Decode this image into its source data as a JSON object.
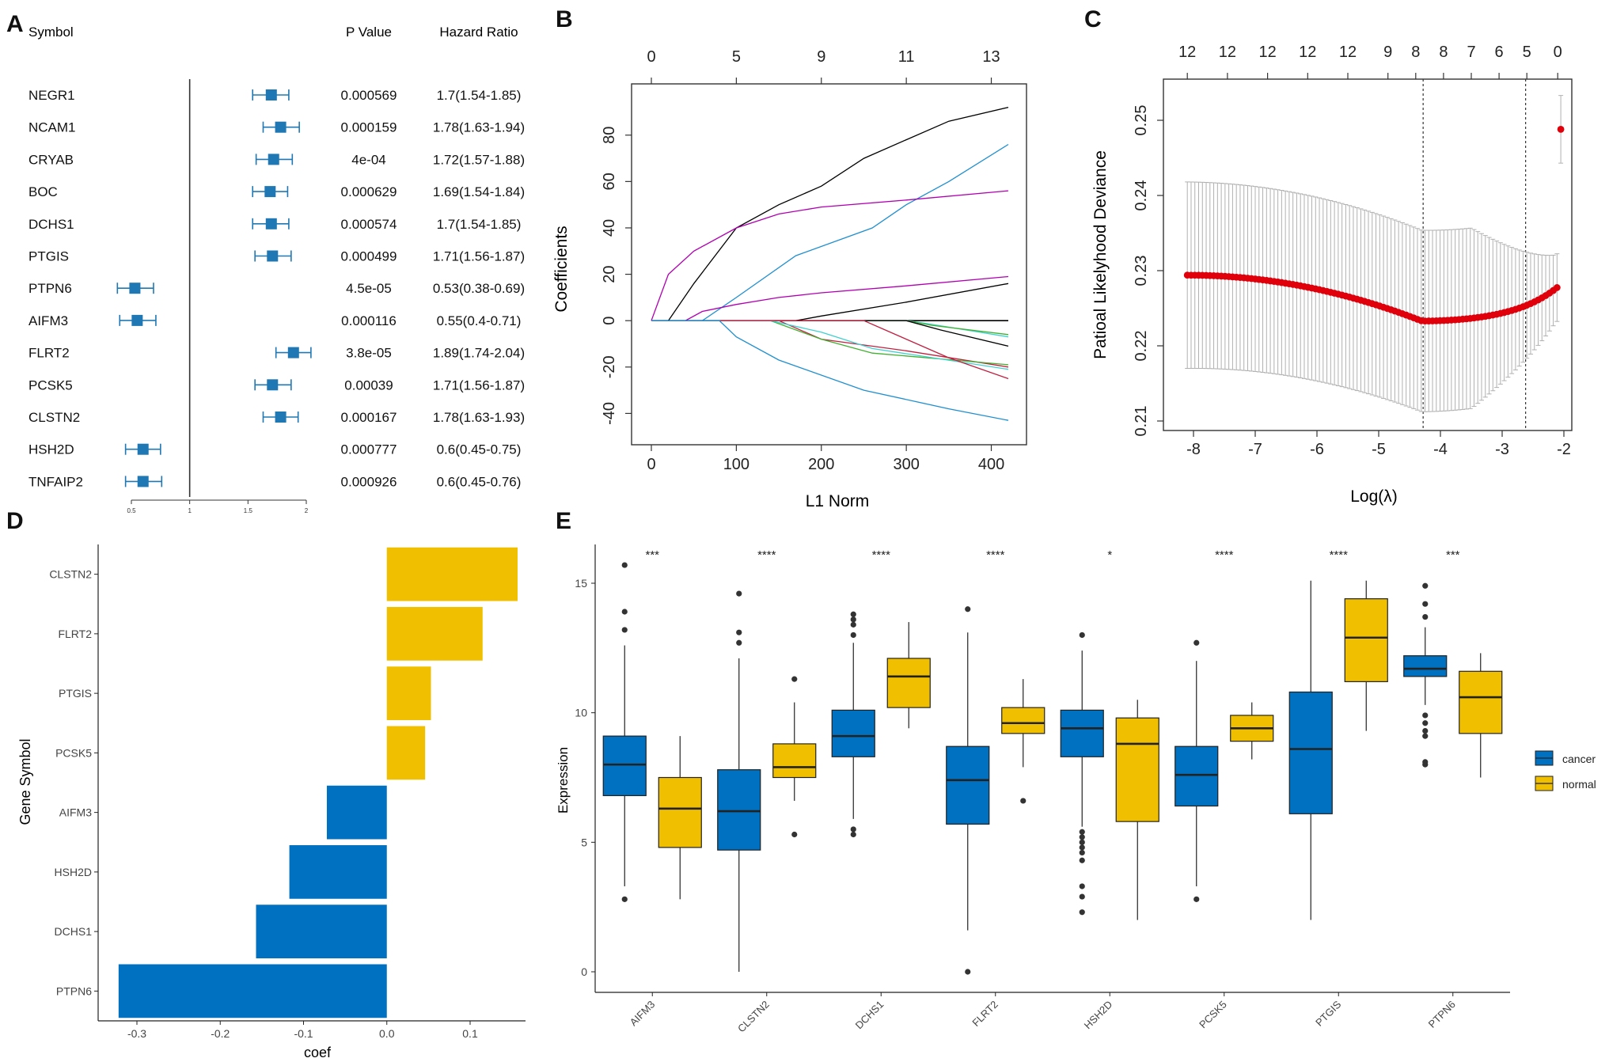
{
  "colors": {
    "blue": "#0070c0",
    "yellow": "#f0c000",
    "forest": "#1f78b4",
    "cv_red": "#e0000b",
    "bar_grey": "#b0b0b0",
    "axis": "#333333"
  },
  "panel_labels": {
    "a": "A",
    "b": "B",
    "c": "C",
    "d": "D",
    "e": "E"
  },
  "chart_data": [
    {
      "id": "A",
      "type": "table",
      "headers": {
        "symbol": "Symbol",
        "pvalue": "P Value",
        "hr": "Hazard Ratio"
      },
      "xlim": [
        0.5,
        2
      ],
      "ref_line": 1,
      "axis_ticks": [
        "0.5",
        "1",
        "1.5",
        "2"
      ],
      "rows": [
        {
          "symbol": "NEGR1",
          "p": "0.000569",
          "hr": "1.7(1.54-1.85)",
          "est": 1.7,
          "lo": 1.54,
          "hi": 1.85
        },
        {
          "symbol": "NCAM1",
          "p": "0.000159",
          "hr": "1.78(1.63-1.94)",
          "est": 1.78,
          "lo": 1.63,
          "hi": 1.94
        },
        {
          "symbol": "CRYAB",
          "p": "4e-04",
          "hr": "1.72(1.57-1.88)",
          "est": 1.72,
          "lo": 1.57,
          "hi": 1.88
        },
        {
          "symbol": "BOC",
          "p": "0.000629",
          "hr": "1.69(1.54-1.84)",
          "est": 1.69,
          "lo": 1.54,
          "hi": 1.84
        },
        {
          "symbol": "DCHS1",
          "p": "0.000574",
          "hr": "1.7(1.54-1.85)",
          "est": 1.7,
          "lo": 1.54,
          "hi": 1.85
        },
        {
          "symbol": "PTGIS",
          "p": "0.000499",
          "hr": "1.71(1.56-1.87)",
          "est": 1.71,
          "lo": 1.56,
          "hi": 1.87
        },
        {
          "symbol": "PTPN6",
          "p": "4.5e-05",
          "hr": "0.53(0.38-0.69)",
          "est": 0.53,
          "lo": 0.38,
          "hi": 0.69
        },
        {
          "symbol": "AIFM3",
          "p": "0.000116",
          "hr": "0.55(0.4-0.71)",
          "est": 0.55,
          "lo": 0.4,
          "hi": 0.71
        },
        {
          "symbol": "FLRT2",
          "p": "3.8e-05",
          "hr": "1.89(1.74-2.04)",
          "est": 1.89,
          "lo": 1.74,
          "hi": 2.04
        },
        {
          "symbol": "PCSK5",
          "p": "0.00039",
          "hr": "1.71(1.56-1.87)",
          "est": 1.71,
          "lo": 1.56,
          "hi": 1.87
        },
        {
          "symbol": "CLSTN2",
          "p": "0.000167",
          "hr": "1.78(1.63-1.93)",
          "est": 1.78,
          "lo": 1.63,
          "hi": 1.93
        },
        {
          "symbol": "HSH2D",
          "p": "0.000777",
          "hr": "0.6(0.45-0.75)",
          "est": 0.6,
          "lo": 0.45,
          "hi": 0.75
        },
        {
          "symbol": "TNFAIP2",
          "p": "0.000926",
          "hr": "0.6(0.45-0.76)",
          "est": 0.6,
          "lo": 0.45,
          "hi": 0.76
        }
      ]
    },
    {
      "id": "B",
      "type": "line",
      "xlabel": "L1 Norm",
      "ylabel": "Coefficients",
      "xlim": [
        0,
        420
      ],
      "ylim": [
        -46,
        98
      ],
      "xticks": [
        0,
        100,
        200,
        300,
        400
      ],
      "yticks": [
        -40,
        -20,
        0,
        20,
        40,
        60,
        80
      ],
      "top_ticks": [
        {
          "x": 0,
          "label": "0"
        },
        {
          "x": 100,
          "label": "5"
        },
        {
          "x": 200,
          "label": "9"
        },
        {
          "x": 300,
          "label": "11"
        },
        {
          "x": 400,
          "label": "13"
        }
      ],
      "series": [
        {
          "name": "black-top",
          "color": "#000000",
          "points": [
            [
              0,
              0
            ],
            [
              20,
              0
            ],
            [
              50,
              16
            ],
            [
              100,
              40
            ],
            [
              150,
              50
            ],
            [
              200,
              58
            ],
            [
              250,
              70
            ],
            [
              300,
              78
            ],
            [
              350,
              86
            ],
            [
              420,
              92
            ]
          ]
        },
        {
          "name": "blue-up",
          "color": "#1f8fd0",
          "points": [
            [
              0,
              0
            ],
            [
              60,
              0
            ],
            [
              100,
              10
            ],
            [
              170,
              28
            ],
            [
              260,
              40
            ],
            [
              300,
              50
            ],
            [
              350,
              60
            ],
            [
              420,
              76
            ]
          ]
        },
        {
          "name": "purple-top",
          "color": "#b000b0",
          "points": [
            [
              0,
              0
            ],
            [
              20,
              20
            ],
            [
              50,
              30
            ],
            [
              100,
              40
            ],
            [
              150,
              46
            ],
            [
              200,
              49
            ],
            [
              300,
              52
            ],
            [
              420,
              56
            ]
          ]
        },
        {
          "name": "purple-mid",
          "color": "#b000b0",
          "points": [
            [
              0,
              0
            ],
            [
              40,
              0
            ],
            [
              60,
              4
            ],
            [
              100,
              7
            ],
            [
              150,
              10
            ],
            [
              200,
              12
            ],
            [
              300,
              15
            ],
            [
              420,
              19
            ]
          ]
        },
        {
          "name": "black-mid",
          "color": "#000000",
          "points": [
            [
              0,
              0
            ],
            [
              170,
              0
            ],
            [
              200,
              2
            ],
            [
              300,
              8
            ],
            [
              420,
              16
            ]
          ]
        },
        {
          "name": "cyan",
          "color": "#40d0d0",
          "points": [
            [
              0,
              0
            ],
            [
              300,
              0
            ],
            [
              320,
              -1
            ],
            [
              420,
              -7
            ]
          ]
        },
        {
          "name": "green",
          "color": "#40b030",
          "points": [
            [
              0,
              0
            ],
            [
              300,
              0
            ],
            [
              330,
              -2
            ],
            [
              420,
              -6
            ]
          ]
        },
        {
          "name": "black-neg",
          "color": "#000000",
          "points": [
            [
              0,
              0
            ],
            [
              300,
              0
            ],
            [
              340,
              -4
            ],
            [
              420,
              -11
            ]
          ]
        },
        {
          "name": "red1",
          "color": "#c02040",
          "points": [
            [
              0,
              0
            ],
            [
              150,
              0
            ],
            [
              200,
              -8
            ],
            [
              300,
              -13
            ],
            [
              420,
              -20
            ]
          ]
        },
        {
          "name": "green2",
          "color": "#40b030",
          "points": [
            [
              0,
              0
            ],
            [
              140,
              0
            ],
            [
              200,
              -8
            ],
            [
              260,
              -14
            ],
            [
              420,
              -19
            ]
          ]
        },
        {
          "name": "cyan2",
          "color": "#40d0d0",
          "points": [
            [
              0,
              0
            ],
            [
              140,
              0
            ],
            [
              200,
              -5
            ],
            [
              260,
              -12
            ],
            [
              420,
              -21
            ]
          ]
        },
        {
          "name": "red2",
          "color": "#c02040",
          "points": [
            [
              0,
              0
            ],
            [
              250,
              0
            ],
            [
              300,
              -8
            ],
            [
              350,
              -16
            ],
            [
              420,
              -25
            ]
          ]
        },
        {
          "name": "blue-down",
          "color": "#1f8fd0",
          "points": [
            [
              0,
              0
            ],
            [
              80,
              0
            ],
            [
              100,
              -7
            ],
            [
              150,
              -17
            ],
            [
              250,
              -30
            ],
            [
              350,
              -38
            ],
            [
              420,
              -43
            ]
          ]
        }
      ]
    },
    {
      "id": "C",
      "type": "scatter",
      "xlabel": "Log(λ)",
      "ylabel": "Patioal Likelyhood Deviance",
      "xlim": [
        -8.3,
        -1.9
      ],
      "ylim": [
        0.21,
        0.256
      ],
      "xticks": [
        -8,
        -7,
        -6,
        -5,
        -4,
        -3,
        -2
      ],
      "yticks": [
        0.21,
        0.22,
        0.23,
        0.24,
        0.25
      ],
      "vlines": [
        -4.28,
        -2.62
      ],
      "top_ticks": [
        {
          "x": -8.1,
          "label": "12"
        },
        {
          "x": -7.45,
          "label": "12"
        },
        {
          "x": -6.8,
          "label": "12"
        },
        {
          "x": -6.15,
          "label": "12"
        },
        {
          "x": -5.5,
          "label": "12"
        },
        {
          "x": -4.85,
          "label": "9"
        },
        {
          "x": -4.4,
          "label": "8"
        },
        {
          "x": -3.95,
          "label": "8"
        },
        {
          "x": -3.5,
          "label": "7"
        },
        {
          "x": -3.05,
          "label": "6"
        },
        {
          "x": -2.6,
          "label": "5"
        },
        {
          "x": -2.1,
          "label": "0"
        }
      ]
    },
    {
      "id": "D",
      "type": "bar",
      "orientation": "horizontal",
      "xlabel": "coef",
      "ylabel": "Gene Symbol",
      "xlim": [
        -0.34,
        0.17
      ],
      "xticks": [
        "-0.3",
        "-0.2",
        "-0.1",
        "0.0",
        "0.1"
      ],
      "categories": [
        "CLSTN2",
        "FLRT2",
        "PTGIS",
        "PCSK5",
        "AIFM3",
        "HSH2D",
        "DCHS1",
        "PTPN6"
      ],
      "values": [
        0.157,
        0.115,
        0.053,
        0.046,
        -0.072,
        -0.117,
        -0.157,
        -0.322
      ]
    },
    {
      "id": "E",
      "type": "bar",
      "subtype": "boxplot",
      "ylabel": "Expression",
      "ylim": [
        -0.8,
        16.4
      ],
      "yticks": [
        0,
        5,
        10,
        15
      ],
      "legend": [
        {
          "name": "cancer",
          "color": "#0070c0"
        },
        {
          "name": "normal",
          "color": "#f0c000"
        }
      ],
      "legend_position": "right",
      "categories": [
        "AIFM3",
        "CLSTN2",
        "DCHS1",
        "FLRT2",
        "HSH2D",
        "PCSK5",
        "PTGIS",
        "PTPN6"
      ],
      "significance": [
        "***",
        "****",
        "****",
        "****",
        "*",
        "****",
        "****",
        "***"
      ],
      "series": [
        {
          "name": "cancer",
          "boxes": [
            {
              "min": 3.3,
              "q1": 6.8,
              "med": 8.0,
              "q3": 9.1,
              "max": 12.6,
              "out": [
                2.8,
                13.2,
                13.9,
                15.7
              ]
            },
            {
              "min": 0.0,
              "q1": 4.7,
              "med": 6.2,
              "q3": 7.8,
              "max": 12.1,
              "out": [
                12.7,
                13.1,
                14.6
              ]
            },
            {
              "min": 5.9,
              "q1": 8.3,
              "med": 9.1,
              "q3": 10.1,
              "max": 12.7,
              "out": [
                5.3,
                5.5,
                13.0,
                13.4,
                13.6,
                13.8
              ]
            },
            {
              "min": 1.6,
              "q1": 5.7,
              "med": 7.4,
              "q3": 8.7,
              "max": 13.1,
              "out": [
                0.0,
                14.0
              ]
            },
            {
              "min": 5.6,
              "q1": 8.3,
              "med": 9.4,
              "q3": 10.1,
              "max": 12.4,
              "out": [
                2.3,
                2.9,
                3.3,
                4.3,
                4.6,
                4.8,
                5.0,
                5.2,
                5.4,
                13.0
              ]
            },
            {
              "min": 3.3,
              "q1": 6.4,
              "med": 7.6,
              "q3": 8.7,
              "max": 12.0,
              "out": [
                2.8,
                12.7
              ]
            },
            {
              "min": 2.0,
              "q1": 6.1,
              "med": 8.6,
              "q3": 10.8,
              "max": 15.1,
              "out": []
            },
            {
              "min": 10.3,
              "q1": 11.4,
              "med": 11.7,
              "q3": 12.2,
              "max": 13.3,
              "out": [
                8.0,
                8.1,
                9.1,
                9.3,
                9.6,
                9.9,
                13.7,
                14.2,
                14.9
              ]
            }
          ]
        },
        {
          "name": "normal",
          "boxes": [
            {
              "min": 2.8,
              "q1": 4.8,
              "med": 6.3,
              "q3": 7.5,
              "max": 9.1,
              "out": []
            },
            {
              "min": 6.6,
              "q1": 7.5,
              "med": 7.9,
              "q3": 8.8,
              "max": 10.4,
              "out": [
                5.3,
                11.3
              ]
            },
            {
              "min": 9.4,
              "q1": 10.2,
              "med": 11.4,
              "q3": 12.1,
              "max": 13.5,
              "out": []
            },
            {
              "min": 7.9,
              "q1": 9.2,
              "med": 9.6,
              "q3": 10.2,
              "max": 11.3,
              "out": [
                6.6
              ]
            },
            {
              "min": 2.0,
              "q1": 5.8,
              "med": 8.8,
              "q3": 9.8,
              "max": 10.5,
              "out": []
            },
            {
              "min": 8.2,
              "q1": 8.9,
              "med": 9.4,
              "q3": 9.9,
              "max": 10.4,
              "out": []
            },
            {
              "min": 9.3,
              "q1": 11.2,
              "med": 12.9,
              "q3": 14.4,
              "max": 15.1,
              "out": []
            },
            {
              "min": 7.5,
              "q1": 9.2,
              "med": 10.6,
              "q3": 11.6,
              "max": 12.3,
              "out": []
            }
          ]
        }
      ]
    }
  ]
}
